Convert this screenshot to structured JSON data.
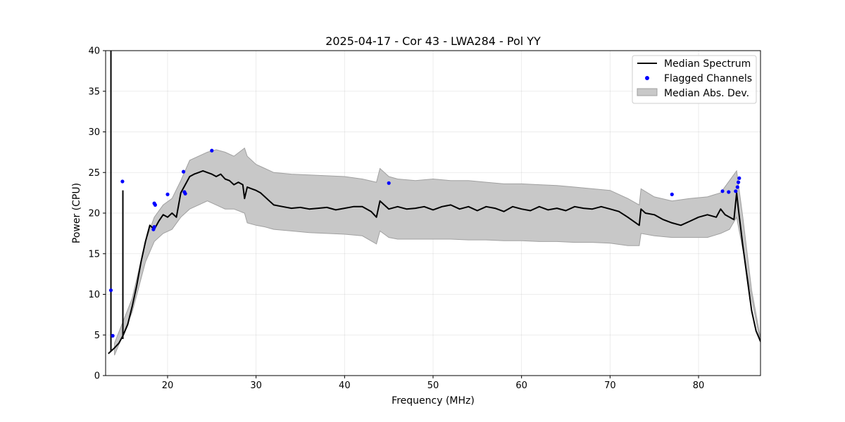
{
  "chart_data": {
    "type": "line",
    "title": "2025-04-17 - Cor 43 - LWA284 - Pol YY",
    "xlabel": "Frequency (MHz)",
    "ylabel": "Power (CPU)",
    "xlim": [
      13.0,
      87.0
    ],
    "ylim": [
      0,
      40
    ],
    "xticks": [
      20,
      30,
      40,
      50,
      60,
      70,
      80
    ],
    "yticks": [
      0,
      5,
      10,
      15,
      20,
      25,
      30,
      35,
      40
    ],
    "grid": true,
    "legend_position": "top-right",
    "colors": {
      "median": "#000000",
      "flagged": "#0000ff",
      "band_fill": "#c8c8c8",
      "band_edge": "#a0a0a0"
    },
    "series": [
      {
        "name": "Median Spectrum",
        "kind": "line",
        "x": [
          13.3,
          13.6,
          14.0,
          14.5,
          15.0,
          15.5,
          16.0,
          16.5,
          17.0,
          17.5,
          18.0,
          18.5,
          19.0,
          19.5,
          20.0,
          20.5,
          21.0,
          21.5,
          22.0,
          22.5,
          23.0,
          23.5,
          24.0,
          24.5,
          25.0,
          25.5,
          26.0,
          26.5,
          27.0,
          27.5,
          28.0,
          28.5,
          28.7,
          29.0,
          29.5,
          30.0,
          30.5,
          31.0,
          31.5,
          32.0,
          33.0,
          34.0,
          35.0,
          36.0,
          37.0,
          38.0,
          39.0,
          40.0,
          41.0,
          42.0,
          43.0,
          43.6,
          44.0,
          45.0,
          46.0,
          47.0,
          48.0,
          49.0,
          50.0,
          51.0,
          52.0,
          53.0,
          54.0,
          55.0,
          56.0,
          57.0,
          58.0,
          59.0,
          60.0,
          61.0,
          62.0,
          63.0,
          64.0,
          65.0,
          66.0,
          67.0,
          68.0,
          69.0,
          70.0,
          71.0,
          72.0,
          73.3,
          73.5,
          74.0,
          75.0,
          76.0,
          77.0,
          78.0,
          79.0,
          80.0,
          81.0,
          82.0,
          82.5,
          83.0,
          83.5,
          84.0,
          84.3,
          84.5,
          85.0,
          85.5,
          86.0,
          86.5,
          87.0
        ],
        "values": [
          2.7,
          3.0,
          3.4,
          4.0,
          5.0,
          6.3,
          8.5,
          11.0,
          14.0,
          16.5,
          18.5,
          18.0,
          19.0,
          19.8,
          19.5,
          20.0,
          19.5,
          22.5,
          23.5,
          24.5,
          24.8,
          25.0,
          25.2,
          25.0,
          24.8,
          24.5,
          24.8,
          24.2,
          24.0,
          23.5,
          23.8,
          23.5,
          21.8,
          23.2,
          23.0,
          22.8,
          22.5,
          22.0,
          21.5,
          21.0,
          20.8,
          20.6,
          20.7,
          20.5,
          20.6,
          20.7,
          20.4,
          20.6,
          20.8,
          20.8,
          20.2,
          19.5,
          21.5,
          20.5,
          20.8,
          20.5,
          20.6,
          20.8,
          20.4,
          20.8,
          21.0,
          20.5,
          20.8,
          20.3,
          20.8,
          20.6,
          20.2,
          20.8,
          20.5,
          20.3,
          20.8,
          20.4,
          20.6,
          20.3,
          20.8,
          20.6,
          20.5,
          20.8,
          20.5,
          20.2,
          19.5,
          18.5,
          20.5,
          20.0,
          19.8,
          19.2,
          18.8,
          18.5,
          19.0,
          19.5,
          19.8,
          19.5,
          20.5,
          19.8,
          19.5,
          19.2,
          22.5,
          20.5,
          16.0,
          12.0,
          8.0,
          5.5,
          4.2
        ]
      },
      {
        "name": "Median Abs. Dev.",
        "kind": "band",
        "x": [
          14.0,
          16.0,
          17.5,
          18.5,
          19.5,
          20.5,
          21.5,
          22.5,
          23.5,
          24.5,
          25.5,
          26.5,
          27.5,
          28.7,
          29.0,
          30.0,
          31.0,
          32.0,
          34.0,
          36.0,
          38.0,
          40.0,
          42.0,
          43.6,
          44.0,
          45.0,
          46.0,
          48.0,
          50.0,
          52.0,
          54.0,
          56.0,
          58.0,
          60.0,
          62.0,
          64.0,
          66.0,
          68.0,
          70.0,
          72.0,
          73.3,
          73.5,
          75.0,
          77.0,
          79.0,
          81.0,
          82.5,
          83.5,
          84.3,
          85.0,
          86.0,
          87.0
        ],
        "upper": [
          4.0,
          9.5,
          16.5,
          19.5,
          21.0,
          21.8,
          24.0,
          26.5,
          27.0,
          27.5,
          27.8,
          27.5,
          27.0,
          28.0,
          27.0,
          26.0,
          25.5,
          25.0,
          24.8,
          24.7,
          24.6,
          24.5,
          24.2,
          23.8,
          25.5,
          24.5,
          24.2,
          24.0,
          24.2,
          24.0,
          24.0,
          23.8,
          23.6,
          23.6,
          23.5,
          23.4,
          23.2,
          23.0,
          22.8,
          21.8,
          21.0,
          23.0,
          22.0,
          21.5,
          21.8,
          22.0,
          22.5,
          24.0,
          25.2,
          19.5,
          10.5,
          4.6
        ],
        "lower": [
          2.5,
          7.8,
          14.0,
          16.5,
          17.5,
          18.0,
          19.5,
          20.5,
          21.0,
          21.5,
          21.0,
          20.5,
          20.5,
          20.0,
          18.8,
          18.5,
          18.3,
          18.0,
          17.8,
          17.6,
          17.5,
          17.4,
          17.2,
          16.2,
          17.8,
          17.0,
          16.8,
          16.8,
          16.8,
          16.8,
          16.7,
          16.7,
          16.6,
          16.6,
          16.5,
          16.5,
          16.4,
          16.4,
          16.3,
          16.0,
          16.0,
          17.5,
          17.2,
          17.0,
          17.0,
          17.0,
          17.5,
          18.0,
          19.5,
          15.5,
          9.5,
          4.0
        ]
      },
      {
        "name": "Flagged Channels",
        "kind": "scatter",
        "x": [
          13.6,
          13.8,
          14.9,
          18.4,
          18.5,
          18.6,
          18.5,
          20.0,
          21.8,
          21.9,
          22.0,
          25.0,
          45.0,
          77.0,
          82.7,
          83.4,
          84.2,
          84.4,
          84.5,
          84.6
        ],
        "values": [
          10.5,
          4.9,
          23.9,
          18.0,
          18.3,
          21.0,
          21.2,
          22.3,
          25.1,
          22.6,
          22.4,
          27.7,
          23.7,
          22.3,
          22.7,
          22.6,
          22.7,
          23.2,
          23.8,
          24.3
        ]
      }
    ],
    "spikes": [
      {
        "x": 13.6,
        "y0": 3.0,
        "y1": 40.0
      },
      {
        "x": 14.95,
        "y0": 4.5,
        "y1": 22.8
      }
    ],
    "legend": [
      {
        "label": "Median Spectrum",
        "kind": "line"
      },
      {
        "label": "Flagged Channels",
        "kind": "scatter"
      },
      {
        "label": "Median Abs. Dev.",
        "kind": "band"
      }
    ]
  }
}
